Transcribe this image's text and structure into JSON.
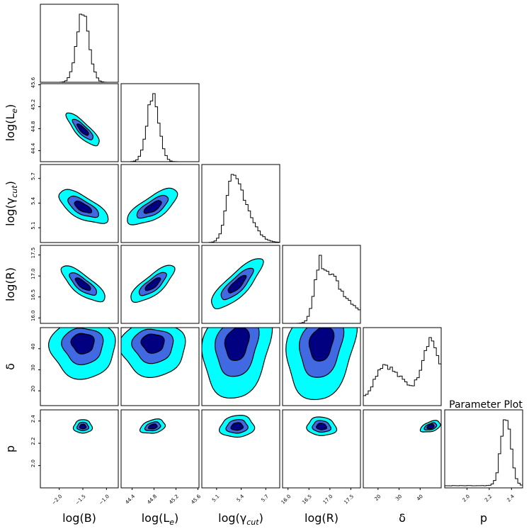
{
  "title": "Parameter Plot",
  "colors": {
    "hist_line": "#000000",
    "outer_contour": "#00ffff",
    "middle_contour": "#4169e1",
    "inner_contour": "#000080",
    "contour_edge": "#000000",
    "background": "#ffffff"
  },
  "chart_data": {
    "type": "corner",
    "title": "Parameter Plot",
    "parameters": [
      {
        "name": "log(B)",
        "label": "log(B)",
        "range": [
          -2.4,
          -0.75
        ],
        "ticks": [
          "−2.0",
          "−1.5",
          "−1.0"
        ],
        "tick_values": [
          -2.0,
          -1.5,
          -1.0
        ],
        "mean": -1.5,
        "sd": 0.13
      },
      {
        "name": "log(Le)",
        "label": "log(L",
        "label_sub": "e",
        "label_close": ")",
        "range": [
          44.2,
          45.62
        ],
        "ticks": [
          "44.4",
          "44.8",
          "45.2",
          "45.6"
        ],
        "tick_values": [
          44.4,
          44.8,
          45.2,
          45.6
        ],
        "mean": 44.78,
        "sd": 0.11
      },
      {
        "name": "log(gamma_cut)",
        "label": "log(γ",
        "label_sub": "cut",
        "label_close": ")",
        "range": [
          4.92,
          5.87
        ],
        "ticks": [
          "5.1",
          "5.4",
          "5.7"
        ],
        "tick_values": [
          5.1,
          5.4,
          5.7
        ],
        "mean": 5.38,
        "sd": 0.12
      },
      {
        "name": "log(R)",
        "label": "log(R)",
        "label_sub": "",
        "label_close": "",
        "range": [
          15.87,
          17.73
        ],
        "ticks": [
          "16.0",
          "16.5",
          "17.0",
          "17.5"
        ],
        "tick_values": [
          16.0,
          16.5,
          17.0,
          17.5
        ],
        "mean": 16.8,
        "sd": 0.2
      },
      {
        "name": "delta",
        "label": "δ",
        "label_sub": "",
        "label_close": "",
        "range": [
          13,
          50
        ],
        "ticks": [
          "20",
          "30",
          "40"
        ],
        "tick_values": [
          20,
          30,
          40
        ],
        "mean": 43,
        "sd": 7
      },
      {
        "name": "p",
        "label": "p",
        "label_sub": "",
        "label_close": "",
        "range": [
          1.8,
          2.5
        ],
        "ticks": [
          "2.0",
          "2.2",
          "2.4"
        ],
        "tick_values": [
          2.0,
          2.2,
          2.4
        ],
        "mean": 2.35,
        "sd": 0.04
      }
    ],
    "histograms": [
      {
        "param": "log(B)",
        "shape": "gaussian",
        "peak": -1.5
      },
      {
        "param": "log(Le)",
        "shape": "gaussian",
        "peak": 44.78
      },
      {
        "param": "log(gamma_cut)",
        "shape": "skewed-right",
        "peak": 5.3
      },
      {
        "param": "log(R)",
        "shape": "skewed-right",
        "peak": 16.8
      },
      {
        "param": "delta",
        "shape": "bimodal",
        "peaks": [
          22,
          45
        ]
      },
      {
        "param": "p",
        "shape": "gaussian",
        "peak": 2.35
      }
    ],
    "contour_levels": [
      "outer",
      "middle",
      "inner"
    ],
    "ylabel_params": [
      "log(Le)",
      "log(gamma_cut)",
      "log(R)",
      "delta",
      "p"
    ],
    "xlabel_params": [
      "log(B)",
      "log(Le)",
      "log(gamma_cut)",
      "log(R)",
      "delta",
      "p"
    ]
  }
}
